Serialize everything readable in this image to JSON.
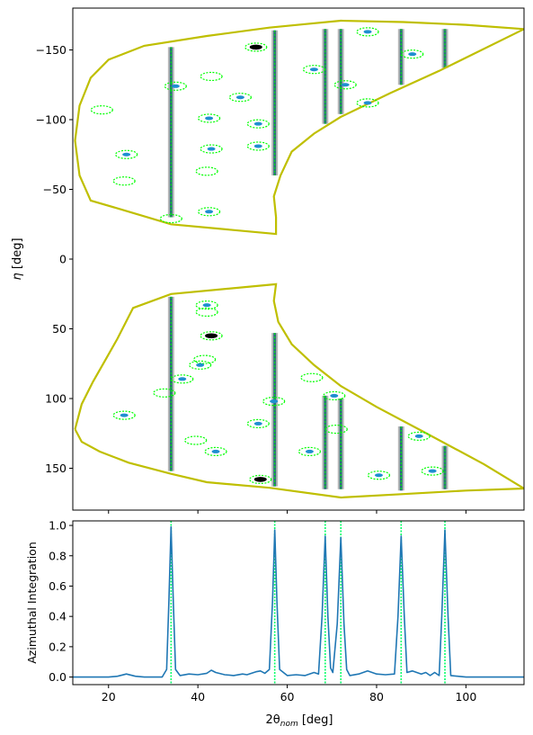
{
  "chart_data": [
    {
      "type": "scatter",
      "title": "",
      "xlabel": "",
      "ylabel_main": "η",
      "ylabel_unit": " [deg]",
      "xlim": [
        12,
        113
      ],
      "ylim": [
        180,
        -180
      ],
      "y_inverted": true,
      "yticks": [
        -150,
        -100,
        -50,
        0,
        50,
        100,
        150
      ],
      "ytick_labels": [
        "−150",
        "−100",
        "−50",
        "0",
        "50",
        "100",
        "150"
      ],
      "xticks": [
        20,
        40,
        60,
        80,
        100
      ],
      "show_xtick_labels": false,
      "grid": false,
      "colors": {
        "detector_outline": "#bfbf00",
        "ring_line": "#2a6f7a",
        "ring_line_edge": "#b8b8b8",
        "predicted_ellipse": "#00ff00",
        "spot": "#1f8fd0",
        "spot_strong": "#000000",
        "frame": "#000000"
      },
      "detector_panels": [
        {
          "name": "upper",
          "outline": [
            [
              23.5,
              -35
            ],
            [
              16,
              -42
            ],
            [
              13.5,
              -60
            ],
            [
              12.5,
              -85
            ],
            [
              13.5,
              -110
            ],
            [
              16,
              -130
            ],
            [
              20,
              -143
            ],
            [
              28,
              -153
            ],
            [
              42,
              -160
            ],
            [
              56,
              -166
            ],
            [
              64,
              -168.5
            ],
            [
              72,
              -171
            ],
            [
              86,
              -170
            ],
            [
              100,
              -168
            ],
            [
              113,
              -165
            ],
            [
              94,
              -135
            ],
            [
              83,
              -119
            ],
            [
              72,
              -102
            ],
            [
              66,
              -90
            ],
            [
              61,
              -77
            ],
            [
              58.5,
              -60
            ],
            [
              57,
              -45
            ],
            [
              57.5,
              -30
            ],
            [
              57.5,
              -18
            ],
            [
              34,
              -25
            ],
            [
              23.5,
              -35
            ]
          ]
        },
        {
          "name": "lower",
          "outline": [
            [
              12.5,
              122
            ],
            [
              14,
              104
            ],
            [
              16.5,
              88
            ],
            [
              19,
              74
            ],
            [
              22,
              57
            ],
            [
              25.5,
              35
            ],
            [
              34,
              25
            ],
            [
              57.5,
              18
            ],
            [
              57,
              30
            ],
            [
              58,
              45
            ],
            [
              61,
              61
            ],
            [
              66,
              76
            ],
            [
              72,
              91
            ],
            [
              80,
              106
            ],
            [
              90,
              123
            ],
            [
              104,
              147
            ],
            [
              113,
              164.5
            ],
            [
              100,
              166
            ],
            [
              86,
              168.5
            ],
            [
              72,
              171
            ],
            [
              56,
              164
            ],
            [
              42,
              160
            ],
            [
              34,
              154
            ],
            [
              24.5,
              146
            ],
            [
              18,
              138
            ],
            [
              14,
              131
            ],
            [
              12.5,
              122
            ]
          ]
        }
      ],
      "ring_lines": [
        {
          "x": 34.0,
          "segments": [
            [
              -152,
              -30
            ],
            [
              27,
              152
            ]
          ]
        },
        {
          "x": 57.2,
          "segments": [
            [
              -164,
              -60
            ],
            [
              53,
              163
            ]
          ]
        },
        {
          "x": 68.5,
          "segments": [
            [
              -165,
              -97
            ],
            [
              98,
              165
            ]
          ]
        },
        {
          "x": 72.0,
          "segments": [
            [
              -165,
              -104
            ],
            [
              100,
              165
            ]
          ]
        },
        {
          "x": 85.5,
          "segments": [
            [
              -165,
              -125
            ],
            [
              120,
              166
            ]
          ]
        },
        {
          "x": 95.3,
          "segments": [
            [
              -165,
              -137
            ],
            [
              134,
              165
            ]
          ]
        }
      ],
      "predicted_spots": [
        {
          "x": 35,
          "y": -124
        },
        {
          "x": 53,
          "y": -152
        },
        {
          "x": 43,
          "y": -131
        },
        {
          "x": 49.5,
          "y": -116
        },
        {
          "x": 18.5,
          "y": -107
        },
        {
          "x": 42.5,
          "y": -101
        },
        {
          "x": 53.5,
          "y": -97
        },
        {
          "x": 24,
          "y": -75
        },
        {
          "x": 43,
          "y": -79
        },
        {
          "x": 53.5,
          "y": -81
        },
        {
          "x": 42,
          "y": -63
        },
        {
          "x": 23.5,
          "y": -56
        },
        {
          "x": 42.5,
          "y": -34
        },
        {
          "x": 34,
          "y": -29
        },
        {
          "x": 66,
          "y": -136
        },
        {
          "x": 73,
          "y": -125
        },
        {
          "x": 78,
          "y": -163
        },
        {
          "x": 88,
          "y": -147
        },
        {
          "x": 78,
          "y": -112
        },
        {
          "x": 42,
          "y": 33
        },
        {
          "x": 42,
          "y": 38
        },
        {
          "x": 43,
          "y": 55
        },
        {
          "x": 41.5,
          "y": 72
        },
        {
          "x": 40.5,
          "y": 76
        },
        {
          "x": 36.5,
          "y": 86
        },
        {
          "x": 32.5,
          "y": 96
        },
        {
          "x": 23.5,
          "y": 112
        },
        {
          "x": 39.5,
          "y": 130
        },
        {
          "x": 44,
          "y": 138
        },
        {
          "x": 53.5,
          "y": 118
        },
        {
          "x": 57,
          "y": 102
        },
        {
          "x": 65.5,
          "y": 85
        },
        {
          "x": 70.5,
          "y": 98
        },
        {
          "x": 71,
          "y": 122
        },
        {
          "x": 65,
          "y": 138
        },
        {
          "x": 54,
          "y": 158
        },
        {
          "x": 80.5,
          "y": 155
        },
        {
          "x": 89.5,
          "y": 127
        },
        {
          "x": 92.5,
          "y": 152
        }
      ],
      "observed_spots": [
        {
          "x": 35,
          "y": -124,
          "s": "normal"
        },
        {
          "x": 53,
          "y": -152,
          "s": "strong"
        },
        {
          "x": 49.5,
          "y": -116,
          "s": "normal"
        },
        {
          "x": 42.5,
          "y": -101,
          "s": "normal"
        },
        {
          "x": 53.5,
          "y": -97,
          "s": "normal"
        },
        {
          "x": 24,
          "y": -75,
          "s": "normal"
        },
        {
          "x": 43,
          "y": -79,
          "s": "normal"
        },
        {
          "x": 53.5,
          "y": -81,
          "s": "normal"
        },
        {
          "x": 42.5,
          "y": -34,
          "s": "normal"
        },
        {
          "x": 66,
          "y": -136,
          "s": "normal"
        },
        {
          "x": 73,
          "y": -125,
          "s": "normal"
        },
        {
          "x": 78,
          "y": -163,
          "s": "normal"
        },
        {
          "x": 88,
          "y": -147,
          "s": "normal"
        },
        {
          "x": 78,
          "y": -112,
          "s": "normal"
        },
        {
          "x": 42,
          "y": 33,
          "s": "normal"
        },
        {
          "x": 43,
          "y": 55,
          "s": "strong"
        },
        {
          "x": 40.5,
          "y": 76,
          "s": "normal"
        },
        {
          "x": 36.5,
          "y": 86,
          "s": "normal"
        },
        {
          "x": 23.5,
          "y": 112,
          "s": "normal"
        },
        {
          "x": 44,
          "y": 138,
          "s": "normal"
        },
        {
          "x": 53.5,
          "y": 118,
          "s": "normal"
        },
        {
          "x": 57,
          "y": 102,
          "s": "normal"
        },
        {
          "x": 70.5,
          "y": 98,
          "s": "normal"
        },
        {
          "x": 65,
          "y": 138,
          "s": "normal"
        },
        {
          "x": 54,
          "y": 158,
          "s": "strong"
        },
        {
          "x": 80.5,
          "y": 155,
          "s": "normal"
        },
        {
          "x": 89.5,
          "y": 127,
          "s": "normal"
        },
        {
          "x": 92.5,
          "y": 152,
          "s": "normal"
        }
      ]
    },
    {
      "type": "line",
      "title": "",
      "xlabel_main": "2θ",
      "xlabel_sub": "nom",
      "xlabel_unit": " [deg]",
      "ylabel": "Azimuthal Integration",
      "xlim": [
        12,
        113
      ],
      "ylim": [
        -0.05,
        1.03
      ],
      "xticks": [
        20,
        40,
        60,
        80,
        100
      ],
      "xtick_labels": [
        "20",
        "40",
        "60",
        "80",
        "100"
      ],
      "yticks": [
        0.0,
        0.2,
        0.4,
        0.6,
        0.8,
        1.0
      ],
      "ytick_labels": [
        "0.0",
        "0.2",
        "0.4",
        "0.6",
        "0.8",
        "1.0"
      ],
      "grid": false,
      "colors": {
        "line": "#1f77b4",
        "marker_line": "#00ff66"
      },
      "peak_markers": [
        34.0,
        57.2,
        68.5,
        72.0,
        85.5,
        95.3
      ],
      "series": [
        {
          "points": [
            [
              12,
              0.0
            ],
            [
              20,
              0.0
            ],
            [
              22,
              0.005
            ],
            [
              24,
              0.02
            ],
            [
              26,
              0.005
            ],
            [
              28,
              0.0
            ],
            [
              32,
              0.0
            ],
            [
              33,
              0.05
            ],
            [
              33.5,
              0.5
            ],
            [
              34,
              0.99
            ],
            [
              34.5,
              0.5
            ],
            [
              35,
              0.05
            ],
            [
              36,
              0.01
            ],
            [
              38,
              0.02
            ],
            [
              40,
              0.015
            ],
            [
              42,
              0.025
            ],
            [
              43,
              0.045
            ],
            [
              44,
              0.03
            ],
            [
              46,
              0.015
            ],
            [
              48,
              0.01
            ],
            [
              50,
              0.02
            ],
            [
              51,
              0.015
            ],
            [
              53,
              0.035
            ],
            [
              54,
              0.04
            ],
            [
              55,
              0.025
            ],
            [
              56,
              0.05
            ],
            [
              56.7,
              0.5
            ],
            [
              57.2,
              0.97
            ],
            [
              57.7,
              0.5
            ],
            [
              58.3,
              0.05
            ],
            [
              60,
              0.01
            ],
            [
              62,
              0.015
            ],
            [
              64,
              0.01
            ],
            [
              66,
              0.03
            ],
            [
              67,
              0.02
            ],
            [
              67.8,
              0.4
            ],
            [
              68.5,
              0.93
            ],
            [
              69.1,
              0.4
            ],
            [
              69.7,
              0.06
            ],
            [
              70.2,
              0.03
            ],
            [
              71.2,
              0.35
            ],
            [
              72.0,
              0.92
            ],
            [
              72.7,
              0.35
            ],
            [
              73.3,
              0.05
            ],
            [
              74,
              0.01
            ],
            [
              76,
              0.02
            ],
            [
              78,
              0.04
            ],
            [
              80,
              0.02
            ],
            [
              82,
              0.015
            ],
            [
              84,
              0.02
            ],
            [
              84.8,
              0.4
            ],
            [
              85.5,
              0.93
            ],
            [
              86.2,
              0.4
            ],
            [
              86.8,
              0.03
            ],
            [
              88,
              0.04
            ],
            [
              90,
              0.02
            ],
            [
              91,
              0.03
            ],
            [
              92,
              0.01
            ],
            [
              93,
              0.03
            ],
            [
              94,
              0.01
            ],
            [
              94.6,
              0.4
            ],
            [
              95.3,
              0.97
            ],
            [
              96,
              0.4
            ],
            [
              96.6,
              0.01
            ],
            [
              100,
              0.0
            ],
            [
              113,
              0.0
            ]
          ]
        }
      ]
    }
  ]
}
